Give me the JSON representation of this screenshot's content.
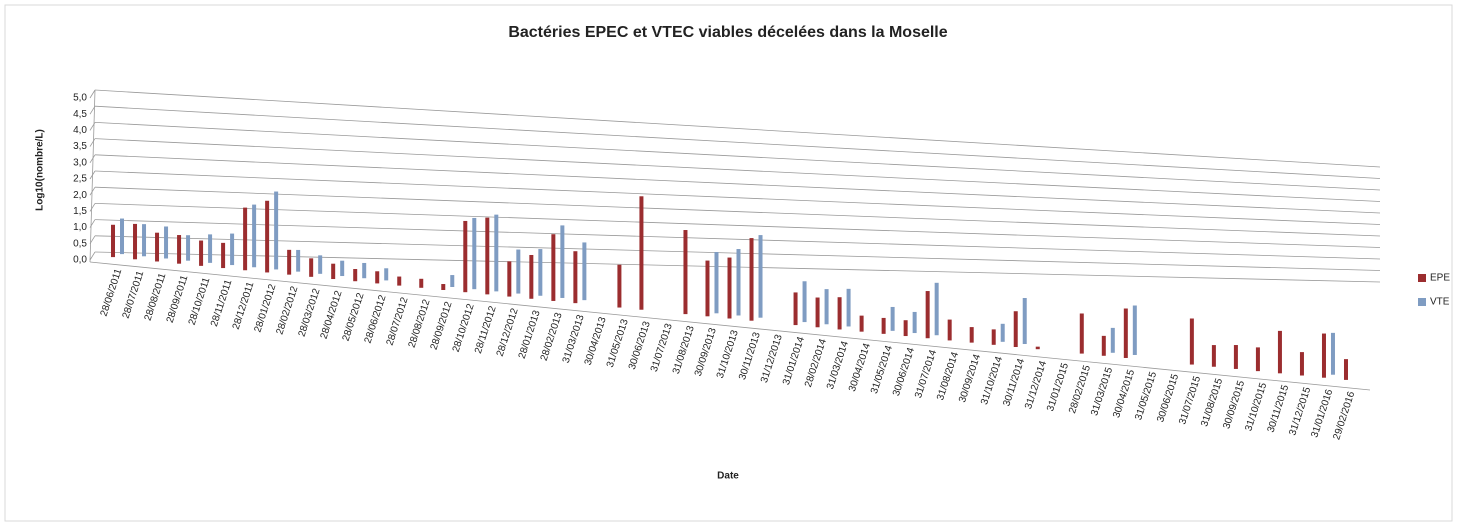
{
  "chart_data": {
    "type": "bar3d",
    "title": "Bactéries EPEC et VTEC viables décelées dans la Moselle",
    "y_label": "Log10(nombre/L)",
    "x_label": "Date",
    "categories": [
      "28/06/2011",
      "28/07/2011",
      "28/08/2011",
      "28/09/2011",
      "28/10/2011",
      "28/11/2011",
      "28/12/2011",
      "28/01/2012",
      "28/02/2012",
      "28/03/2012",
      "28/04/2012",
      "28/05/2012",
      "28/06/2012",
      "28/07/2012",
      "28/08/2012",
      "28/09/2012",
      "28/10/2012",
      "28/11/2012",
      "28/12/2012",
      "28/01/2013",
      "28/02/2013",
      "31/03/2013",
      "30/04/2013",
      "31/05/2013",
      "30/06/2013",
      "31/07/2013",
      "31/08/2013",
      "30/09/2013",
      "31/10/2013",
      "30/11/2013",
      "31/12/2013",
      "31/01/2014",
      "28/02/2014",
      "31/03/2014",
      "30/04/2014",
      "31/05/2014",
      "30/06/2014",
      "31/07/2014",
      "31/08/2014",
      "30/09/2014",
      "31/10/2014",
      "30/11/2014",
      "31/12/2014",
      "31/01/2015",
      "28/02/2015",
      "31/03/2015",
      "30/04/2015",
      "31/05/2015",
      "30/06/2015",
      "31/07/2015",
      "31/08/2015",
      "30/09/2015",
      "31/10/2015",
      "30/11/2015",
      "31/12/2015",
      "31/01/2016",
      "29/02/2016"
    ],
    "series": [
      {
        "name": "EPE",
        "color": "#9b2d2f",
        "values": [
          1.0,
          1.1,
          0.9,
          0.9,
          0.8,
          0.8,
          2.0,
          2.3,
          0.8,
          0.6,
          0.5,
          0.4,
          0.4,
          0.3,
          0.3,
          0.2,
          2.4,
          2.6,
          1.2,
          1.5,
          2.3,
          1.8,
          null,
          1.5,
          4.0,
          null,
          3.0,
          2.0,
          2.2,
          3.0,
          null,
          1.2,
          1.1,
          1.2,
          0.6,
          0.6,
          0.6,
          1.8,
          0.8,
          0.6,
          0.6,
          1.4,
          0.1,
          null,
          1.6,
          0.8,
          2.0,
          null,
          null,
          1.9,
          0.9,
          1.0,
          1.0,
          1.8,
          1.0,
          1.9,
          0.9
        ]
      },
      {
        "name": "VTE",
        "color": "#7f9cc2",
        "values": [
          1.1,
          1.0,
          1.0,
          0.8,
          0.9,
          1.0,
          2.0,
          2.5,
          0.7,
          0.6,
          0.5,
          0.5,
          0.4,
          null,
          null,
          0.4,
          2.4,
          2.6,
          1.5,
          1.6,
          2.5,
          2.0,
          null,
          null,
          null,
          null,
          null,
          2.2,
          2.4,
          3.0,
          null,
          1.5,
          1.3,
          1.4,
          null,
          0.9,
          0.8,
          2.0,
          null,
          null,
          0.7,
          1.8,
          null,
          null,
          null,
          1.0,
          2.0,
          null,
          null,
          null,
          null,
          null,
          null,
          null,
          null,
          1.8,
          null
        ]
      }
    ],
    "ylim": [
      0,
      5
    ],
    "yticks": [
      {
        "value": 0,
        "label": "0,0"
      },
      {
        "value": 0.5,
        "label": "0,5"
      },
      {
        "value": 1,
        "label": "1,0"
      },
      {
        "value": 1.5,
        "label": "1,5"
      },
      {
        "value": 2,
        "label": "2,0"
      },
      {
        "value": 2.5,
        "label": "2,5"
      },
      {
        "value": 3,
        "label": "3,0"
      },
      {
        "value": 3.5,
        "label": "3,5"
      },
      {
        "value": 4,
        "label": "4,0"
      },
      {
        "value": 4.5,
        "label": "4,5"
      },
      {
        "value": 5,
        "label": "5,0"
      }
    ],
    "grid": true,
    "legend": "right"
  }
}
